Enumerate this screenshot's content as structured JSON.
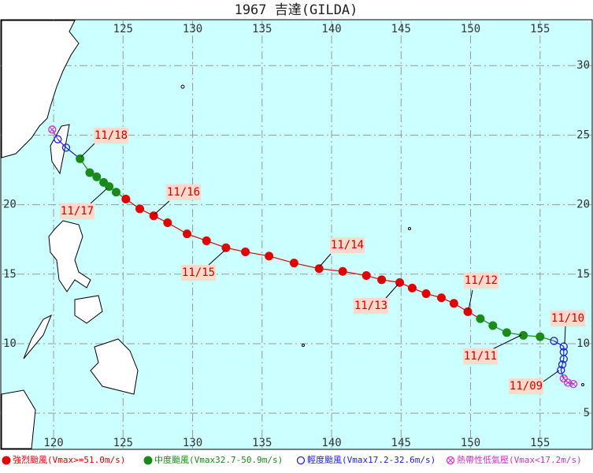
{
  "title": "1967 吉達(GILDA)",
  "map": {
    "lon_range": [
      116.2,
      158.75
    ],
    "lat_range": [
      2.4,
      33.3
    ],
    "lon_ticks": [
      120,
      125,
      130,
      135,
      140,
      145,
      150,
      155
    ],
    "lat_ticks": [
      5,
      10,
      15,
      20,
      25,
      30
    ]
  },
  "intensity_classes": [
    {
      "label": "強烈颱風(Vmax>=51.0m/s)",
      "color": "#e00000"
    },
    {
      "label": "中度颱風(Vmax32.7-50.9m/s)",
      "color": "#1a8a1a"
    },
    {
      "label": "輕度颱風(Vmax17.2-32.6m/s)",
      "color": "#2020e0"
    },
    {
      "label": "熱帶性低氣壓(Vmax<17.2m/s)",
      "color": "#cc33cc"
    }
  ],
  "track": [
    {
      "lon": 157.4,
      "lat": 7.1,
      "class": 3
    },
    {
      "lon": 157.0,
      "lat": 7.2,
      "class": 3
    },
    {
      "lon": 156.7,
      "lat": 7.5,
      "class": 3
    },
    {
      "lon": 156.5,
      "lat": 8.1,
      "class": 2
    },
    {
      "lon": 156.6,
      "lat": 8.5,
      "class": 2
    },
    {
      "lon": 156.7,
      "lat": 8.9,
      "class": 2
    },
    {
      "lon": 156.7,
      "lat": 9.4,
      "class": 2
    },
    {
      "lon": 156.7,
      "lat": 9.8,
      "class": 2
    },
    {
      "lon": 156.0,
      "lat": 10.2,
      "class": 2
    },
    {
      "lon": 155.0,
      "lat": 10.5,
      "class": 1
    },
    {
      "lon": 153.8,
      "lat": 10.6,
      "class": 1
    },
    {
      "lon": 152.6,
      "lat": 10.8,
      "class": 1
    },
    {
      "lon": 151.6,
      "lat": 11.3,
      "class": 1
    },
    {
      "lon": 150.7,
      "lat": 11.8,
      "class": 1
    },
    {
      "lon": 149.8,
      "lat": 12.3,
      "class": 0
    },
    {
      "lon": 148.8,
      "lat": 12.9,
      "class": 0
    },
    {
      "lon": 147.9,
      "lat": 13.3,
      "class": 0
    },
    {
      "lon": 146.8,
      "lat": 13.6,
      "class": 0
    },
    {
      "lon": 145.8,
      "lat": 14.0,
      "class": 0
    },
    {
      "lon": 144.9,
      "lat": 14.4,
      "class": 0
    },
    {
      "lon": 143.6,
      "lat": 14.6,
      "class": 0
    },
    {
      "lon": 142.5,
      "lat": 14.9,
      "class": 0
    },
    {
      "lon": 140.8,
      "lat": 15.2,
      "class": 0
    },
    {
      "lon": 139.1,
      "lat": 15.4,
      "class": 0
    },
    {
      "lon": 137.3,
      "lat": 15.8,
      "class": 0
    },
    {
      "lon": 135.5,
      "lat": 16.3,
      "class": 0
    },
    {
      "lon": 133.8,
      "lat": 16.6,
      "class": 0
    },
    {
      "lon": 132.4,
      "lat": 16.9,
      "class": 0
    },
    {
      "lon": 131.0,
      "lat": 17.4,
      "class": 0
    },
    {
      "lon": 129.6,
      "lat": 17.9,
      "class": 0
    },
    {
      "lon": 128.2,
      "lat": 18.7,
      "class": 0
    },
    {
      "lon": 127.2,
      "lat": 19.2,
      "class": 0
    },
    {
      "lon": 126.2,
      "lat": 19.7,
      "class": 0
    },
    {
      "lon": 125.2,
      "lat": 20.4,
      "class": 0
    },
    {
      "lon": 124.5,
      "lat": 20.9,
      "class": 1
    },
    {
      "lon": 124.0,
      "lat": 21.3,
      "class": 1
    },
    {
      "lon": 123.6,
      "lat": 21.6,
      "class": 1
    },
    {
      "lon": 123.1,
      "lat": 22.0,
      "class": 1
    },
    {
      "lon": 122.6,
      "lat": 22.3,
      "class": 1
    },
    {
      "lon": 121.9,
      "lat": 23.3,
      "class": 1
    },
    {
      "lon": 120.9,
      "lat": 24.1,
      "class": 2
    },
    {
      "lon": 120.3,
      "lat": 24.7,
      "class": 2
    },
    {
      "lon": 119.9,
      "lat": 25.4,
      "class": 3
    }
  ],
  "date_labels": [
    "11/09",
    "11/10",
    "11/11",
    "11/12",
    "11/13",
    "11/14",
    "11/15",
    "11/16",
    "11/17",
    "11/18"
  ]
}
